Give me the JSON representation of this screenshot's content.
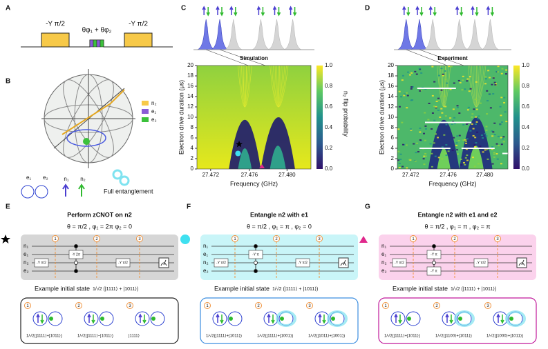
{
  "panel_labels": [
    "A",
    "B",
    "C",
    "D",
    "E",
    "F",
    "G"
  ],
  "panel_a": {
    "pulses": [
      "-Y π/2",
      "θφ₁ + θφ₂",
      "-Y π/2"
    ]
  },
  "panel_b": {
    "legend": [
      "n₂",
      "e₁",
      "e₂"
    ],
    "icons": [
      "e₁",
      "e₂",
      "n₁",
      "n₂"
    ],
    "caption": "Full entanglement"
  },
  "heatmaps": [
    {
      "title": "Simulation",
      "ylabel": "Electron drive duration (μs)",
      "xlabel": "Frequency (GHz)",
      "xticks": [
        "27.472",
        "27.476",
        "27.480"
      ],
      "yticks": [
        "0",
        "2",
        "4",
        "6",
        "8",
        "10",
        "12",
        "14",
        "16",
        "18",
        "20"
      ],
      "cbar_ticks": [
        "0.0",
        "0.2",
        "0.4",
        "0.6",
        "0.8",
        "1.0"
      ],
      "cbar_label": "n₂ flip probability"
    },
    {
      "title": "Experiment",
      "ylabel": "Electron drive duration (μs)",
      "xlabel": "Frequency (GHz)",
      "xticks": [
        "27.472",
        "27.476",
        "27.480"
      ],
      "yticks": [
        "0",
        "2",
        "4",
        "6",
        "8",
        "10",
        "12",
        "14",
        "16",
        "18",
        "20"
      ],
      "cbar_ticks": [
        "0.0",
        "0.2",
        "0.4",
        "0.6",
        "0.8",
        "1.0"
      ],
      "cbar_label": "n₂ flip probability"
    }
  ],
  "circuits": [
    {
      "title": "Perform zCNOT on n2",
      "theta": "θ = π/2 , φ₁ = 2π   φ₂ = 0",
      "qubits": [
        "n₁",
        "e₁",
        "n₂",
        "e₂"
      ],
      "steps": [
        "1",
        "2",
        "3"
      ],
      "gates": [
        "-Y π/2",
        "-Y 2π",
        "-Y π/2"
      ],
      "example_label": "Example initial state",
      "example_state": "1/√2 (|1111⟩ + |1011⟩)",
      "states": [
        "1/√2(|1111⟩+|1011⟩)",
        "1/√2(|1111⟩−|1011⟩)",
        "|1111⟩"
      ]
    },
    {
      "title": "Entangle n2 with e1",
      "theta": "θ = π/2 , φ₁ = π , φ₂ = 0",
      "qubits": [
        "n₁",
        "e₁",
        "n₂",
        "e₂"
      ],
      "steps": [
        "1",
        "2",
        "3"
      ],
      "gates": [
        "-Y π/2",
        "-Y π",
        "-Y π/2"
      ],
      "example_label": "Example initial state",
      "example_state": "1/√2 (|1111⟩ + |1011⟩)",
      "states": [
        "1/√2(|1111⟩+|1011⟩)",
        "1/√2(|1111⟩+|1001⟩)",
        "1/√2(|1011⟩+|1001⟩)"
      ]
    },
    {
      "title": "Entangle n2 with e1 and e2",
      "theta": "θ = π/2 , φ₁ = π , φ₂ = π",
      "qubits": [
        "n₁",
        "e₁",
        "n₂",
        "e₂"
      ],
      "steps": [
        "1",
        "2",
        "3"
      ],
      "gates": [
        "-Y π/2",
        "-Y π",
        "-Y π",
        "-Y π/2"
      ],
      "example_label": "Example initial state",
      "example_state": "1/√2 (|1111⟩ + |1011⟩)",
      "states": [
        "1/√2(|1111⟩+|1011⟩)",
        "1/√2(|1100⟩+|1011⟩)",
        "1/√2(|1000⟩+|1011⟩)"
      ]
    }
  ]
}
